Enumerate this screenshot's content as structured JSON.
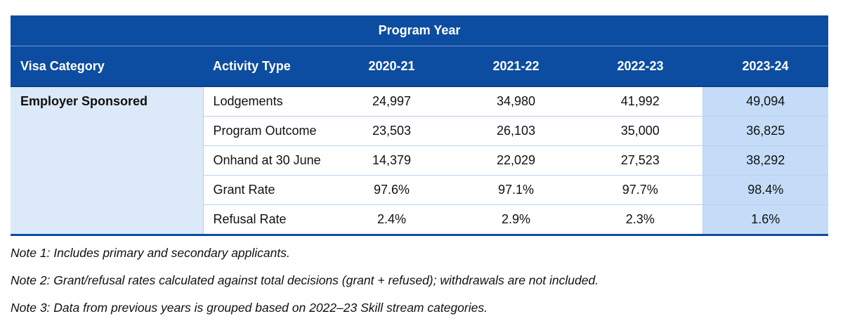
{
  "table": {
    "group_header": "Program Year",
    "columns": {
      "visa_category": "Visa Category",
      "activity_type": "Activity Type",
      "years": [
        "2020-21",
        "2021-22",
        "2022-23",
        "2023-24"
      ]
    },
    "visa_category_value": "Employer Sponsored",
    "rows": [
      {
        "activity": "Lodgements",
        "values": [
          "24,997",
          "34,980",
          "41,992",
          "49,094"
        ]
      },
      {
        "activity": "Program Outcome",
        "values": [
          "23,503",
          "26,103",
          "35,000",
          "36,825"
        ]
      },
      {
        "activity": "Onhand at 30 June",
        "values": [
          "14,379",
          "22,029",
          "27,523",
          "38,292"
        ]
      },
      {
        "activity": "Grant Rate",
        "values": [
          "97.6%",
          "97.1%",
          "97.7%",
          "98.4%"
        ]
      },
      {
        "activity": "Refusal Rate",
        "values": [
          "2.4%",
          "2.9%",
          "2.3%",
          "1.6%"
        ]
      }
    ]
  },
  "notes": [
    "Note 1: Includes primary and secondary applicants.",
    "Note 2: Grant/refusal rates calculated against total decisions (grant + refused); withdrawals are not included.",
    "Note 3: Data from previous years is grouped based on 2022–23 Skill stream categories."
  ],
  "colors": {
    "header_blue": "#0d4da1",
    "category_fill": "#dbe9f8",
    "highlight_fill": "#c4dcf7"
  }
}
